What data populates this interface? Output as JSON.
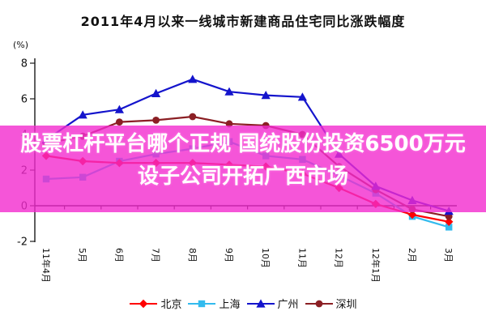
{
  "title": "2011年4月以来一线城市新建商品住宅同比涨跌幅度",
  "overlay": {
    "line1": "股票杠杆平台哪个正规 国统股份投资6500万元",
    "line2": "设子公司开拓广西市场",
    "background_color": "#f32ace",
    "text_color": "#ffffff"
  },
  "chart_data": {
    "type": "line",
    "title": "2011年4月以来一线城市新建商品住宅同比涨跌幅度",
    "ylabel": "(%)",
    "xlabel": "",
    "ylim": [
      -2,
      8
    ],
    "yticks": [
      8,
      6,
      4,
      2,
      0,
      -2
    ],
    "grid": false,
    "legend_position": "bottom",
    "categories": [
      "11年4月",
      "5月",
      "6月",
      "7月",
      "8月",
      "9月",
      "10月",
      "11月",
      "12月",
      "12年1月",
      "2月",
      "3月"
    ],
    "series": [
      {
        "name": "北京",
        "key": "beijing",
        "color": "#ff0000",
        "marker": "diamond",
        "values": [
          2.8,
          2.5,
          2.4,
          2.4,
          2.4,
          2.3,
          2.2,
          1.8,
          1.0,
          0.1,
          -0.5,
          -0.9
        ]
      },
      {
        "name": "上海",
        "key": "shanghai",
        "color": "#33bbee",
        "marker": "square",
        "values": [
          1.5,
          1.6,
          2.5,
          2.9,
          3.2,
          3.6,
          2.8,
          2.6,
          1.7,
          0.7,
          -0.6,
          -1.2
        ]
      },
      {
        "name": "广州",
        "key": "guangzhou",
        "color": "#1414cc",
        "marker": "triangle",
        "values": [
          3.7,
          5.1,
          5.4,
          6.3,
          7.1,
          6.4,
          6.2,
          6.1,
          2.9,
          1.1,
          0.3,
          -0.3
        ]
      },
      {
        "name": "深圳",
        "key": "shenzhen",
        "color": "#8b1f24",
        "marker": "circle",
        "values": [
          3.5,
          3.9,
          4.7,
          4.8,
          5.0,
          4.6,
          4.5,
          4.0,
          2.2,
          0.9,
          -0.2,
          -0.6
        ]
      }
    ]
  }
}
